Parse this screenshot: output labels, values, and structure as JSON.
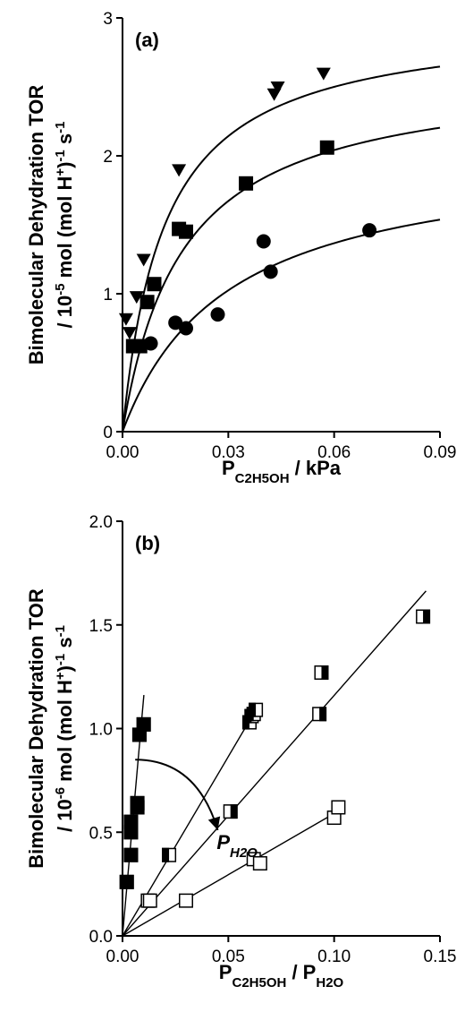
{
  "chart_data": [
    {
      "type": "scatter",
      "panel_label": "(a)",
      "ylabel_line1": "Bimolecular Dehydration TOR",
      "ylabel_line2": "/ 10-5 mol (mol H+)-1 s-1",
      "ylabel_prefix": "/ 10",
      "ylabel_exp": "-5",
      "ylabel_mid": " mol (mol H",
      "ylabel_sup_plus": "+",
      "ylabel_close": ")",
      "ylabel_exp2": "-1",
      "ylabel_tail": " s",
      "ylabel_exp3": "-1",
      "xlabel_main": "P",
      "xlabel_sub": "C2H5OH",
      "xlabel_tail": " / kPa",
      "xlim": [
        0,
        0.09
      ],
      "ylim": [
        0,
        3
      ],
      "x_ticks": [
        "0.00",
        "0.03",
        "0.06",
        "0.09"
      ],
      "y_ticks": [
        "0",
        "1",
        "2",
        "3"
      ],
      "grid": false,
      "series": [
        {
          "marker": "triangle-down",
          "points": [
            [
              0.001,
              0.82
            ],
            [
              0.002,
              0.72
            ],
            [
              0.004,
              0.98
            ],
            [
              0.006,
              1.25
            ],
            [
              0.016,
              1.9
            ],
            [
              0.043,
              2.45
            ],
            [
              0.044,
              2.5
            ],
            [
              0.057,
              2.6
            ]
          ],
          "fit_curve": {
            "vmax": 3.0,
            "k": 0.012
          }
        },
        {
          "marker": "square",
          "points": [
            [
              0.003,
              0.62
            ],
            [
              0.005,
              0.62
            ],
            [
              0.007,
              0.94
            ],
            [
              0.009,
              1.07
            ],
            [
              0.016,
              1.47
            ],
            [
              0.018,
              1.45
            ],
            [
              0.035,
              1.8
            ],
            [
              0.058,
              2.06
            ]
          ],
          "fit_curve": {
            "vmax": 2.62,
            "k": 0.017
          }
        },
        {
          "marker": "circle",
          "points": [
            [
              0.008,
              0.64
            ],
            [
              0.015,
              0.79
            ],
            [
              0.018,
              0.75
            ],
            [
              0.027,
              0.85
            ],
            [
              0.04,
              1.38
            ],
            [
              0.042,
              1.16
            ],
            [
              0.07,
              1.46
            ]
          ],
          "fit_curve": {
            "vmax": 2.05,
            "k": 0.03
          }
        }
      ]
    },
    {
      "type": "scatter",
      "panel_label": "(b)",
      "ylabel_line1": "Bimolecular Dehydration TOR",
      "ylabel_line2": "/ 10-6 mol (mol H+)-1 s-1",
      "ylabel_prefix": "/ 10",
      "ylabel_exp": "-6",
      "ylabel_mid": " mol (mol H",
      "ylabel_sup_plus": "+",
      "ylabel_close": ")",
      "ylabel_exp2": "-1",
      "ylabel_tail": " s",
      "ylabel_exp3": "-1",
      "xlabel_main": "P",
      "xlabel_sub": "C2H5OH",
      "xlabel_mid": " / P",
      "xlabel_sub2": "H2O",
      "xlim": [
        0,
        0.15
      ],
      "ylim": [
        0,
        2.0
      ],
      "x_ticks": [
        "0.00",
        "0.05",
        "0.10",
        "0.15"
      ],
      "y_ticks": [
        "0.0",
        "0.5",
        "1.0",
        "1.5",
        "2.0"
      ],
      "grid": false,
      "annotation_main": "P",
      "annotation_sub": "H2O",
      "annotation_arrow": {
        "from": [
          0.006,
          0.85
        ],
        "to": [
          0.045,
          0.51
        ],
        "ctrl": [
          0.035,
          0.85
        ]
      },
      "series": [
        {
          "marker": "square-filled",
          "fill_fraction": 1.0,
          "line_slope": 115,
          "points": [
            [
              0.002,
              0.26
            ],
            [
              0.004,
              0.39
            ],
            [
              0.004,
              0.5
            ],
            [
              0.004,
              0.55
            ],
            [
              0.007,
              0.62
            ],
            [
              0.007,
              0.64
            ],
            [
              0.008,
              0.97
            ],
            [
              0.01,
              1.02
            ]
          ]
        },
        {
          "marker": "square-half",
          "fill_fraction": 0.5,
          "line_slope": 17.3,
          "points": [
            [
              0.022,
              0.39
            ],
            [
              0.06,
              1.03
            ],
            [
              0.061,
              1.06
            ],
            [
              0.062,
              1.07
            ],
            [
              0.063,
              1.09
            ]
          ]
        },
        {
          "marker": "square-quarter",
          "fill_fraction": 0.5,
          "line_slope": 11.6,
          "points": [
            [
              0.012,
              0.17
            ],
            [
              0.051,
              0.6
            ],
            [
              0.093,
              1.07
            ],
            [
              0.094,
              1.27
            ],
            [
              0.142,
              1.54
            ]
          ]
        },
        {
          "marker": "square-open",
          "fill_fraction": 0.0,
          "line_slope": 5.9,
          "points": [
            [
              0.013,
              0.17
            ],
            [
              0.03,
              0.17
            ],
            [
              0.062,
              0.37
            ],
            [
              0.065,
              0.35
            ],
            [
              0.1,
              0.57
            ],
            [
              0.102,
              0.62
            ]
          ]
        }
      ]
    }
  ]
}
